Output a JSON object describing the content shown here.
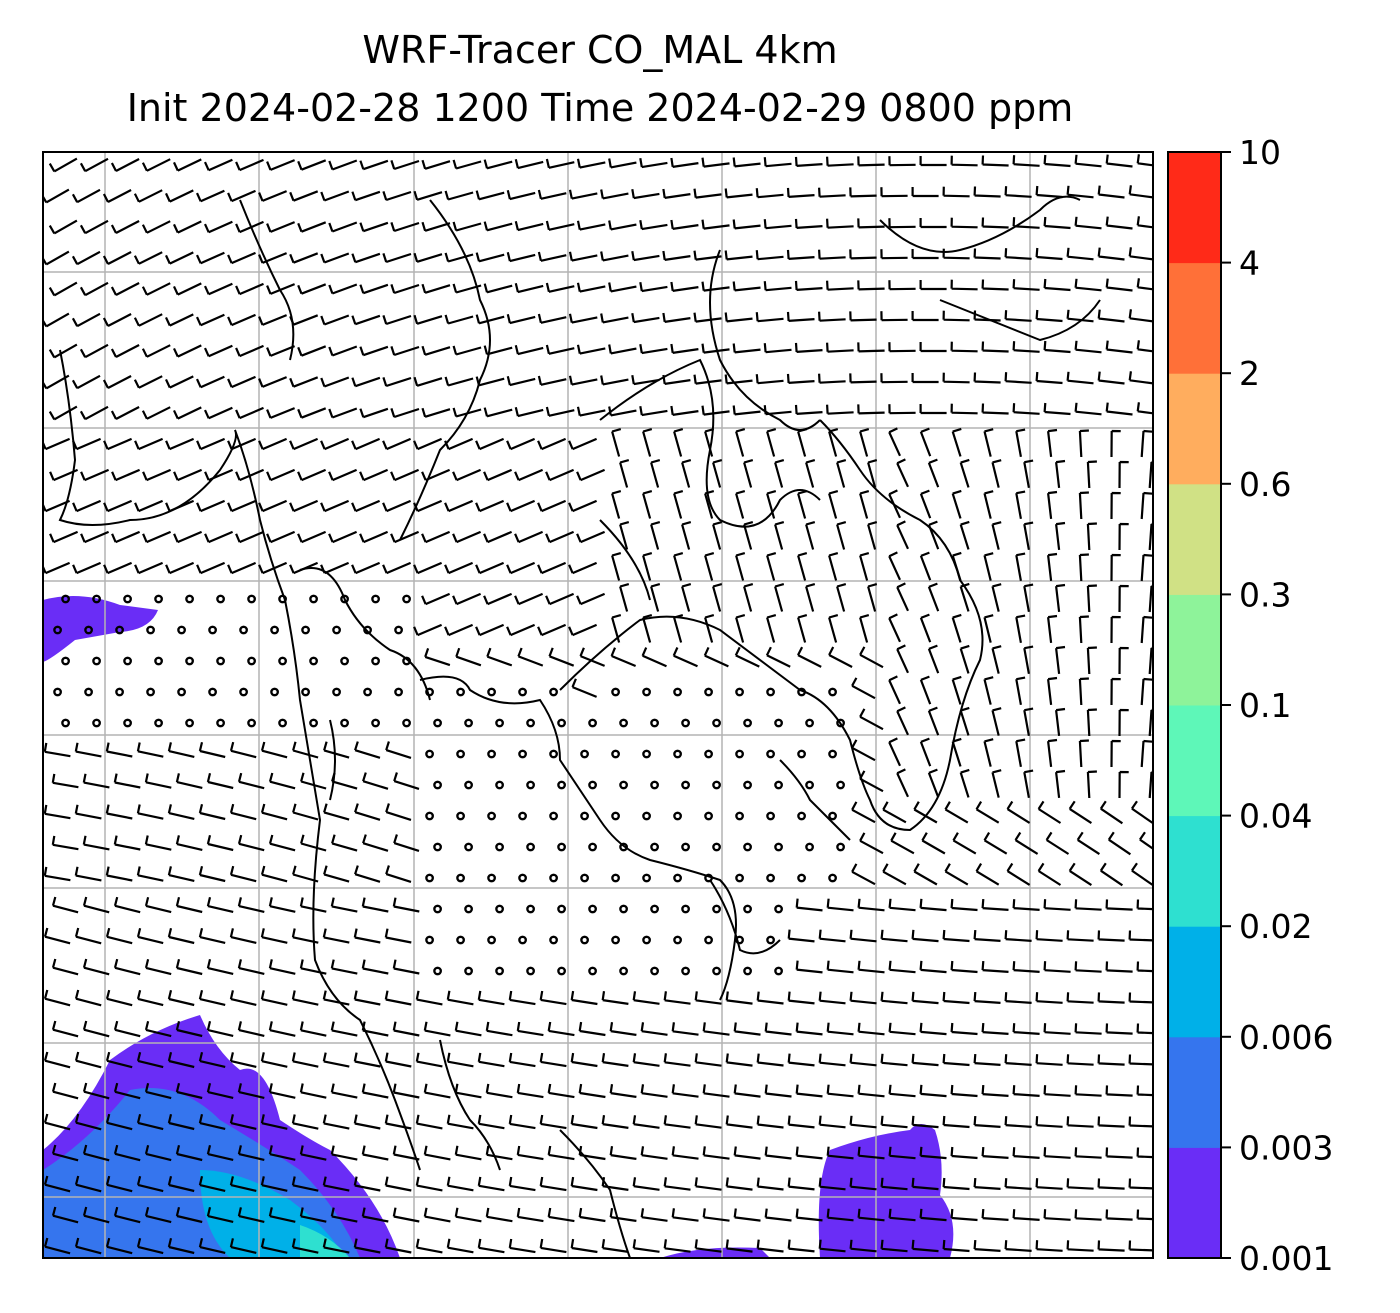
{
  "title_line1": "WRF-Tracer CO_MAL 4km",
  "title_line2": "Init 2024-02-28 1200 Time 2024-02-29 0800 ppm",
  "chart_data": {
    "type": "heatmap",
    "variable": "CO_MAL",
    "units": "ppm",
    "levels": [
      "0.001",
      "0.003",
      "0.006",
      "0.02",
      "0.04",
      "0.1",
      "0.3",
      "0.6",
      "2",
      "4",
      "10"
    ],
    "level_colors": [
      "#6a2df6",
      "#3575ee",
      "#00b0e8",
      "#2ee0d0",
      "#5ef7b8",
      "#8ef39a",
      "#d0e185",
      "#ffad5e",
      "#ff7038",
      "#ff2a18"
    ],
    "background": "#ffffff",
    "gridlines": true,
    "overlay": "wind barbs"
  }
}
